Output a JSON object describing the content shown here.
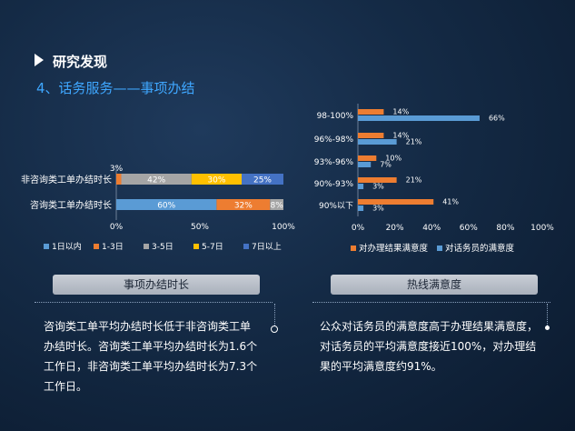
{
  "header": {
    "section_title": "研究发现",
    "subtitle": "4、话务服务——事项办结"
  },
  "colors": {
    "blue": "#5a9bd5",
    "orange": "#ed7d31",
    "gray": "#a5a5a5",
    "yellow": "#ffc000",
    "dark_blue": "#4472c4",
    "accent": "#3fa7ff"
  },
  "chart_data": [
    {
      "type": "bar",
      "orientation": "horizontal",
      "stacked": true,
      "percent": true,
      "categories": [
        "非咨询类工单办结时长",
        "咨询类工单办结时长"
      ],
      "series": [
        {
          "name": "1日以内",
          "values": [
            0,
            60
          ],
          "labels": [
            "",
            "60%"
          ],
          "color": "#5a9bd5"
        },
        {
          "name": "1-3日",
          "values": [
            3,
            32
          ],
          "labels": [
            "3%",
            "32%"
          ],
          "color": "#ed7d31"
        },
        {
          "name": "3-5日",
          "values": [
            42,
            8
          ],
          "labels": [
            "42%",
            "8%"
          ],
          "color": "#a5a5a5"
        },
        {
          "name": "5-7日",
          "values": [
            30,
            0
          ],
          "labels": [
            "30%",
            ""
          ],
          "color": "#ffc000"
        },
        {
          "name": "7日以上",
          "values": [
            25,
            0
          ],
          "labels": [
            "25%",
            ""
          ],
          "color": "#4472c4"
        }
      ],
      "xlim": [
        0,
        100
      ],
      "x_ticks": [
        "0%",
        "50%",
        "100%"
      ],
      "legend_position": "bottom",
      "caption": "事项办结时长"
    },
    {
      "type": "bar",
      "orientation": "horizontal",
      "stacked": false,
      "categories": [
        "98-100%",
        "96%-98%",
        "93%-96%",
        "90%-93%",
        "90%以下"
      ],
      "series": [
        {
          "name": "对办理结果满意度",
          "values": [
            14,
            14,
            10,
            21,
            41
          ],
          "labels": [
            "14%",
            "14%",
            "10%",
            "21%",
            "41%"
          ],
          "color": "#ed7d31"
        },
        {
          "name": "对话务员的满意度",
          "values": [
            66,
            21,
            7,
            3,
            3
          ],
          "labels": [
            "66%",
            "21%",
            "7%",
            "3%",
            "3%"
          ],
          "color": "#5a9bd5"
        }
      ],
      "xlim": [
        0,
        100
      ],
      "x_ticks": [
        "0%",
        "20%",
        "40%",
        "60%",
        "80%",
        "100%"
      ],
      "legend_position": "bottom",
      "caption": "热线满意度"
    }
  ],
  "descriptions": {
    "left": [
      "咨询类工单平均办结时长低于非咨询类工单",
      "办结时长。咨询类工单平均办结时长为1.6个",
      "工作日，非咨询类工单平均办结时长为7.3个",
      "工作日。"
    ],
    "right": [
      "公众对话务员的满意度高于办理结果满意度，",
      "对话务员的平均满意度接近100%，对办理结",
      "果的平均满意度约91%。"
    ]
  }
}
